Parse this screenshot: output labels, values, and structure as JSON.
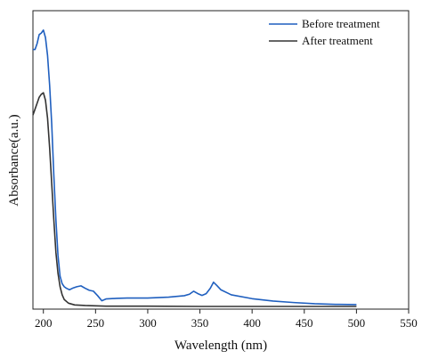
{
  "chart_data": {
    "type": "line",
    "title": "",
    "xlabel": "Wavelength (nm)",
    "ylabel": "Absorbance(a.u.)",
    "xlim": [
      190,
      550
    ],
    "ylim": [
      0,
      1
    ],
    "x_ticks": [
      200,
      250,
      300,
      350,
      400,
      450,
      500,
      550
    ],
    "y_ticks_shown": false,
    "grid": false,
    "legend_position": "top-right",
    "series": [
      {
        "name": "Before treatment",
        "color": "#1f5fbf",
        "points": [
          [
            190,
            0.87
          ],
          [
            192,
            0.87
          ],
          [
            194,
            0.89
          ],
          [
            196,
            0.92
          ],
          [
            198,
            0.925
          ],
          [
            200,
            0.935
          ],
          [
            202,
            0.91
          ],
          [
            204,
            0.85
          ],
          [
            206,
            0.75
          ],
          [
            208,
            0.62
          ],
          [
            210,
            0.45
          ],
          [
            212,
            0.3
          ],
          [
            214,
            0.18
          ],
          [
            216,
            0.11
          ],
          [
            218,
            0.085
          ],
          [
            220,
            0.075
          ],
          [
            222,
            0.07
          ],
          [
            225,
            0.065
          ],
          [
            228,
            0.07
          ],
          [
            232,
            0.075
          ],
          [
            236,
            0.078
          ],
          [
            240,
            0.07
          ],
          [
            244,
            0.063
          ],
          [
            248,
            0.06
          ],
          [
            252,
            0.045
          ],
          [
            256,
            0.028
          ],
          [
            260,
            0.034
          ],
          [
            270,
            0.036
          ],
          [
            280,
            0.037
          ],
          [
            300,
            0.037
          ],
          [
            320,
            0.04
          ],
          [
            335,
            0.045
          ],
          [
            340,
            0.05
          ],
          [
            344,
            0.06
          ],
          [
            348,
            0.052
          ],
          [
            352,
            0.046
          ],
          [
            356,
            0.052
          ],
          [
            360,
            0.07
          ],
          [
            363,
            0.09
          ],
          [
            366,
            0.08
          ],
          [
            370,
            0.065
          ],
          [
            380,
            0.048
          ],
          [
            400,
            0.035
          ],
          [
            420,
            0.027
          ],
          [
            440,
            0.022
          ],
          [
            460,
            0.018
          ],
          [
            480,
            0.016
          ],
          [
            500,
            0.015
          ]
        ]
      },
      {
        "name": "After treatment",
        "color": "#333333",
        "points": [
          [
            190,
            0.65
          ],
          [
            192,
            0.67
          ],
          [
            194,
            0.69
          ],
          [
            196,
            0.71
          ],
          [
            198,
            0.72
          ],
          [
            200,
            0.725
          ],
          [
            202,
            0.7
          ],
          [
            204,
            0.64
          ],
          [
            206,
            0.54
          ],
          [
            208,
            0.42
          ],
          [
            210,
            0.3
          ],
          [
            212,
            0.19
          ],
          [
            214,
            0.12
          ],
          [
            216,
            0.075
          ],
          [
            218,
            0.048
          ],
          [
            220,
            0.032
          ],
          [
            224,
            0.02
          ],
          [
            230,
            0.014
          ],
          [
            240,
            0.012
          ],
          [
            260,
            0.01
          ],
          [
            300,
            0.01
          ],
          [
            350,
            0.009
          ],
          [
            400,
            0.009
          ],
          [
            450,
            0.009
          ],
          [
            500,
            0.009
          ]
        ]
      }
    ]
  }
}
